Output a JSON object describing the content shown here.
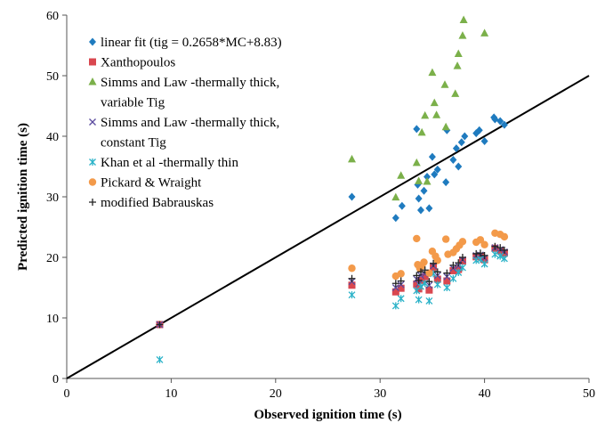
{
  "chart_data": {
    "type": "scatter",
    "xlabel": "Observed ignition time (s)",
    "ylabel": "Predicted ignition time (s)",
    "xlim": [
      0,
      50
    ],
    "ylim": [
      0,
      60
    ],
    "xticks": [
      0,
      10,
      20,
      30,
      40,
      50
    ],
    "yticks": [
      0,
      10,
      20,
      30,
      40,
      50,
      60
    ],
    "grid": false,
    "legend_position": "top-left",
    "reference_line": {
      "from": [
        0,
        0
      ],
      "to": [
        50,
        50
      ],
      "color": "#000000"
    },
    "series": [
      {
        "name": "linear fit (tig = 0.2658*MC+8.83)",
        "marker": "diamond",
        "color": "#1f7bbf",
        "points": [
          [
            27.3,
            30.0
          ],
          [
            31.5,
            26.5
          ],
          [
            32.1,
            28.5
          ],
          [
            33.5,
            41.2
          ],
          [
            33.6,
            32.0
          ],
          [
            33.7,
            29.7
          ],
          [
            33.9,
            27.8
          ],
          [
            34.2,
            31.0
          ],
          [
            34.5,
            33.3
          ],
          [
            34.7,
            28.1
          ],
          [
            35.0,
            36.6
          ],
          [
            35.2,
            33.7
          ],
          [
            35.5,
            34.5
          ],
          [
            36.3,
            32.4
          ],
          [
            36.4,
            41.0
          ],
          [
            37.0,
            36.1
          ],
          [
            37.3,
            38.0
          ],
          [
            37.5,
            35.0
          ],
          [
            37.8,
            39.0
          ],
          [
            38.1,
            40.0
          ],
          [
            39.2,
            40.5
          ],
          [
            39.5,
            41.0
          ],
          [
            40.0,
            39.2
          ],
          [
            40.9,
            43.1
          ],
          [
            41.0,
            42.8
          ],
          [
            41.5,
            42.5
          ],
          [
            41.9,
            41.9
          ]
        ]
      },
      {
        "name": "Xanthopoulos",
        "marker": "square",
        "color": "#d9474f",
        "points": [
          [
            8.9,
            8.9
          ],
          [
            27.3,
            15.4
          ],
          [
            31.5,
            14.3
          ],
          [
            32.0,
            14.9
          ],
          [
            33.5,
            15.6
          ],
          [
            33.7,
            14.8
          ],
          [
            33.9,
            16.2
          ],
          [
            34.3,
            16.8
          ],
          [
            34.7,
            14.6
          ],
          [
            35.1,
            18.3
          ],
          [
            35.5,
            16.4
          ],
          [
            36.4,
            16.1
          ],
          [
            37.0,
            17.8
          ],
          [
            37.5,
            18.0
          ],
          [
            37.9,
            19.4
          ],
          [
            39.2,
            20.1
          ],
          [
            39.6,
            20.2
          ],
          [
            40.0,
            19.6
          ],
          [
            41.0,
            21.5
          ],
          [
            41.5,
            21.1
          ],
          [
            41.9,
            20.7
          ]
        ]
      },
      {
        "name": "Simms and Law -thermally thick, variable Tig",
        "marker": "triangle",
        "color": "#7bb04a",
        "points": [
          [
            27.3,
            36.2
          ],
          [
            31.5,
            29.9
          ],
          [
            32.0,
            33.5
          ],
          [
            33.5,
            35.6
          ],
          [
            33.7,
            32.6
          ],
          [
            34.0,
            40.6
          ],
          [
            34.3,
            43.4
          ],
          [
            34.5,
            32.5
          ],
          [
            35.0,
            50.5
          ],
          [
            35.2,
            45.5
          ],
          [
            35.4,
            43.5
          ],
          [
            36.2,
            48.5
          ],
          [
            36.3,
            41.5
          ],
          [
            37.2,
            47.0
          ],
          [
            37.4,
            51.6
          ],
          [
            37.5,
            53.6
          ],
          [
            37.9,
            56.6
          ],
          [
            38.0,
            59.2
          ],
          [
            40.0,
            57.0
          ]
        ]
      },
      {
        "name": "Simms and Law -thermally thick, constant Tig",
        "marker": "x",
        "color": "#5a4a9e",
        "points": [
          [
            8.9,
            8.9
          ],
          [
            27.3,
            16.0
          ],
          [
            31.5,
            15.0
          ],
          [
            32.0,
            15.5
          ],
          [
            33.5,
            16.4
          ],
          [
            33.7,
            15.6
          ],
          [
            33.9,
            17.0
          ],
          [
            34.3,
            17.3
          ],
          [
            34.7,
            15.4
          ],
          [
            35.1,
            18.6
          ],
          [
            35.5,
            17.0
          ],
          [
            36.4,
            16.8
          ],
          [
            37.0,
            18.2
          ],
          [
            37.5,
            18.6
          ],
          [
            37.9,
            19.6
          ],
          [
            39.2,
            20.3
          ],
          [
            39.6,
            20.4
          ],
          [
            40.0,
            19.9
          ],
          [
            41.0,
            21.6
          ],
          [
            41.5,
            21.3
          ],
          [
            41.9,
            20.9
          ]
        ]
      },
      {
        "name": "Khan et al -thermally thin",
        "marker": "star",
        "color": "#2ab2c8",
        "points": [
          [
            8.9,
            3.1
          ],
          [
            27.3,
            13.8
          ],
          [
            31.5,
            12.0
          ],
          [
            32.0,
            13.2
          ],
          [
            33.5,
            14.5
          ],
          [
            33.7,
            13.0
          ],
          [
            33.9,
            15.2
          ],
          [
            34.3,
            15.7
          ],
          [
            34.7,
            12.8
          ],
          [
            35.1,
            17.3
          ],
          [
            35.5,
            15.5
          ],
          [
            36.4,
            15.0
          ],
          [
            37.0,
            16.5
          ],
          [
            37.5,
            17.5
          ],
          [
            37.9,
            18.3
          ],
          [
            39.2,
            19.5
          ],
          [
            39.6,
            19.7
          ],
          [
            40.0,
            18.9
          ],
          [
            41.0,
            20.5
          ],
          [
            41.5,
            20.2
          ],
          [
            41.9,
            19.8
          ]
        ]
      },
      {
        "name": "Pickard & Wraight",
        "marker": "circle",
        "color": "#f39a4a",
        "points": [
          [
            27.3,
            18.2
          ],
          [
            31.5,
            16.9
          ],
          [
            32.0,
            17.3
          ],
          [
            33.5,
            23.1
          ],
          [
            33.6,
            18.8
          ],
          [
            33.8,
            18.2
          ],
          [
            34.0,
            18.6
          ],
          [
            34.2,
            19.2
          ],
          [
            34.7,
            17.4
          ],
          [
            35.0,
            21.0
          ],
          [
            35.3,
            20.2
          ],
          [
            35.5,
            19.5
          ],
          [
            36.3,
            23.0
          ],
          [
            36.5,
            20.5
          ],
          [
            37.0,
            20.8
          ],
          [
            37.3,
            21.4
          ],
          [
            37.6,
            22.0
          ],
          [
            37.9,
            22.6
          ],
          [
            39.2,
            22.5
          ],
          [
            39.6,
            22.9
          ],
          [
            40.0,
            22.1
          ],
          [
            41.0,
            24.0
          ],
          [
            41.5,
            23.8
          ],
          [
            41.9,
            23.4
          ]
        ]
      },
      {
        "name": "modified Babrauskas",
        "marker": "plus",
        "color": "#222222",
        "points": [
          [
            8.9,
            8.9
          ],
          [
            27.3,
            16.5
          ],
          [
            31.5,
            15.7
          ],
          [
            32.0,
            16.1
          ],
          [
            33.5,
            17.0
          ],
          [
            33.7,
            16.2
          ],
          [
            33.9,
            17.6
          ],
          [
            34.3,
            17.9
          ],
          [
            34.7,
            16.0
          ],
          [
            35.1,
            19.0
          ],
          [
            35.5,
            17.6
          ],
          [
            36.4,
            17.4
          ],
          [
            37.0,
            18.7
          ],
          [
            37.5,
            19.1
          ],
          [
            37.9,
            20.0
          ],
          [
            39.2,
            20.6
          ],
          [
            39.6,
            20.7
          ],
          [
            40.0,
            20.3
          ],
          [
            41.0,
            21.8
          ],
          [
            41.5,
            21.6
          ],
          [
            41.9,
            21.2
          ]
        ]
      }
    ]
  }
}
